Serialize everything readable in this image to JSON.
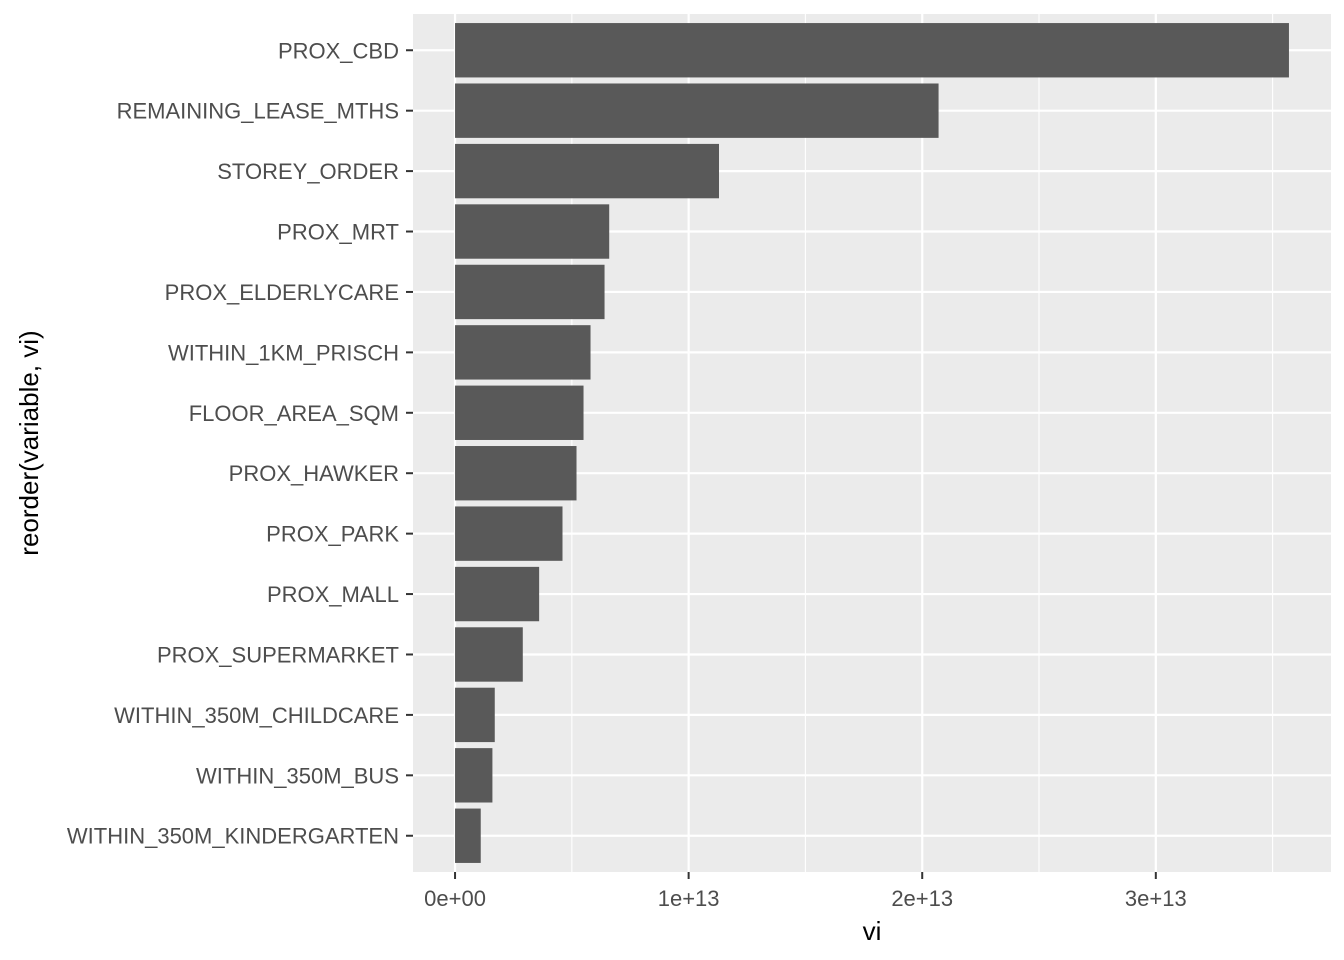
{
  "chart_data": {
    "type": "bar",
    "orientation": "horizontal",
    "xlabel": "vi",
    "ylabel": "reorder(variable, vi)",
    "xlim": [
      -1800000000000.0,
      37500000000000.0
    ],
    "x_ticks": [
      0,
      10000000000000.0,
      20000000000000.0,
      30000000000000.0
    ],
    "x_tick_labels": [
      "0e+00",
      "1e+13",
      "2e+13",
      "3e+13"
    ],
    "grid": true,
    "categories": [
      "PROX_CBD",
      "REMAINING_LEASE_MTHS",
      "STOREY_ORDER",
      "PROX_MRT",
      "PROX_ELDERLYCARE",
      "WITHIN_1KM_PRISCH",
      "FLOOR_AREA_SQM",
      "PROX_HAWKER",
      "PROX_PARK",
      "PROX_MALL",
      "PROX_SUPERMARKET",
      "WITHIN_350M_CHILDCARE",
      "WITHIN_350M_BUS",
      "WITHIN_350M_KINDERGARTEN"
    ],
    "values": [
      35700000000000.0,
      20700000000000.0,
      11300000000000.0,
      6600000000000.0,
      6400000000000.0,
      5800000000000.0,
      5500000000000.0,
      5200000000000.0,
      4600000000000.0,
      3600000000000.0,
      2900000000000.0,
      1700000000000.0,
      1600000000000.0,
      1100000000000.0
    ],
    "colors": {
      "panel": "#ebebeb",
      "grid_major": "#ffffff",
      "bar": "#595959"
    }
  }
}
